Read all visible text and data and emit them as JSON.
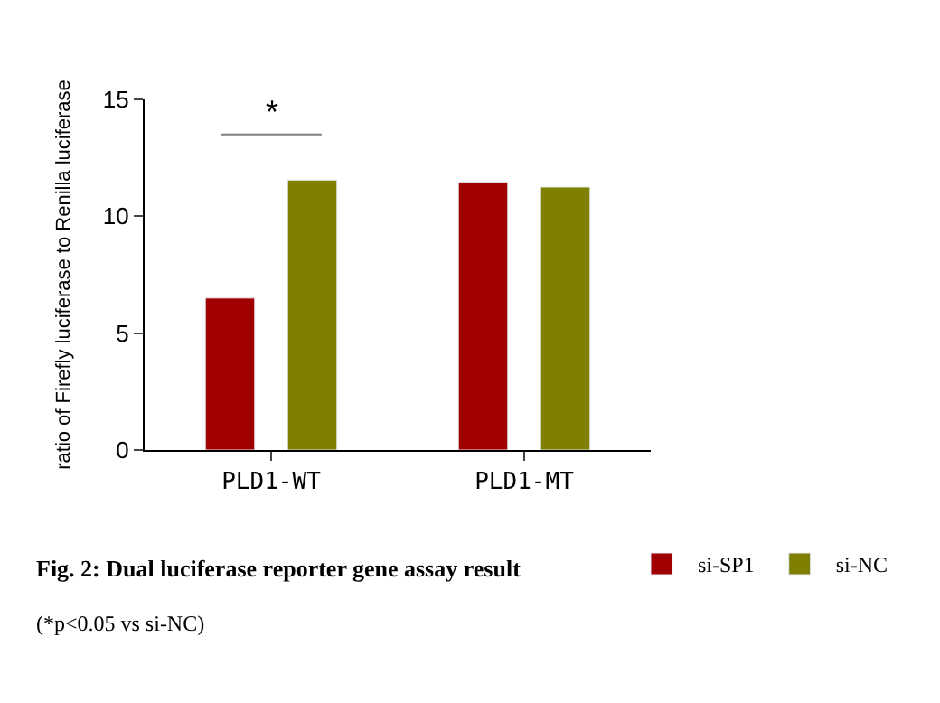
{
  "chart_data": {
    "type": "bar",
    "title": "Fig. 2: Dual luciferase reporter gene assay result",
    "ylabel": "ratio of Firefly luciferase to Renilla luciferase",
    "categories": [
      "PLD1-WT",
      "PLD1-MT"
    ],
    "series": [
      {
        "name": "si-SP1",
        "color": "#a00000",
        "values": [
          6.5,
          11.45
        ]
      },
      {
        "name": "si-NC",
        "color": "#808000",
        "values": [
          11.55,
          11.25
        ]
      }
    ],
    "ylim": [
      0,
      15
    ],
    "yticks": [
      0,
      5,
      10,
      15
    ],
    "legend": "bottom",
    "annotations": [
      "*",
      "(*p<0.05 vs si-NC)"
    ]
  }
}
